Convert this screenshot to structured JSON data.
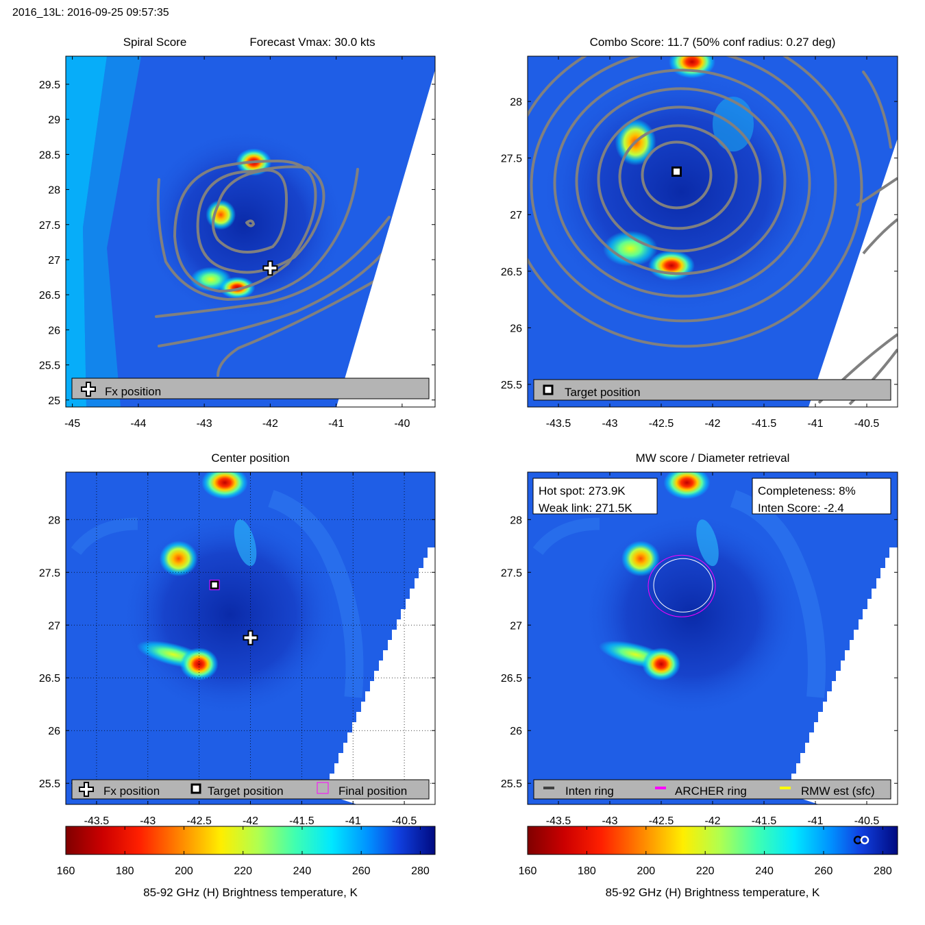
{
  "title": "2016_13L: 2016-09-25 09:57:35",
  "chart_data": [
    {
      "type": "heatmap",
      "panel": "Spiral Score",
      "title_left": "Spiral Score",
      "title_right": "Forecast Vmax: 30.0 kts",
      "xlim": [
        -45.1,
        -39.5
      ],
      "ylim": [
        24.9,
        29.9
      ],
      "xticks": [
        "-45",
        "-44",
        "-43",
        "-42",
        "-41",
        "-40"
      ],
      "yticks": [
        "25",
        "25.5",
        "26",
        "26.5",
        "27",
        "27.5",
        "28",
        "28.5",
        "29",
        "29.5"
      ],
      "legend": [
        "Fx position"
      ],
      "legend_placement": "bottom",
      "fx_position": {
        "x": -42.0,
        "y": 26.88
      },
      "hot_spots": [
        {
          "x": -42.25,
          "y": 28.39,
          "level": "red"
        },
        {
          "x": -42.75,
          "y": 27.64,
          "level": "orange"
        },
        {
          "x": -42.9,
          "y": 26.72,
          "level": "yellow"
        },
        {
          "x": -42.5,
          "y": 26.6,
          "level": "red"
        }
      ],
      "colors": {
        "background": "#1f5ee6",
        "cold": "#0033a0",
        "warm": "#00cfff",
        "contour": "#808080"
      }
    },
    {
      "type": "heatmap",
      "panel": "Combo Score",
      "title": "Combo Score: 11.7  (50% conf radius: 0.27 deg)",
      "xlim": [
        -43.8,
        -40.2
      ],
      "ylim": [
        25.3,
        28.4
      ],
      "xticks": [
        "-43.5",
        "-43",
        "-42.5",
        "-42",
        "-41.5",
        "-41",
        "-40.5"
      ],
      "yticks": [
        "25.5",
        "26",
        "26.5",
        "27",
        "27.5",
        "28"
      ],
      "legend": [
        "Target position"
      ],
      "legend_placement": "bottom",
      "target_position": {
        "x": -42.35,
        "y": 27.38
      },
      "hot_spots": [
        {
          "x": -42.2,
          "y": 28.35,
          "level": "red"
        },
        {
          "x": -42.75,
          "y": 27.64,
          "level": "orange"
        },
        {
          "x": -42.8,
          "y": 26.7,
          "level": "yellow"
        },
        {
          "x": -42.4,
          "y": 26.55,
          "level": "red"
        }
      ]
    },
    {
      "type": "heatmap",
      "panel": "Center position",
      "title": "Center position",
      "xlim": [
        -43.8,
        -40.2
      ],
      "ylim": [
        25.3,
        28.45
      ],
      "xticks": [
        "-43.5",
        "-43",
        "-42.5",
        "-42",
        "-41.5",
        "-41",
        "-40.5"
      ],
      "yticks": [
        "25.5",
        "26",
        "26.5",
        "27",
        "27.5",
        "28"
      ],
      "grid": true,
      "legend": [
        "Fx position",
        "Target position",
        "Final position"
      ],
      "legend_placement": "bottom",
      "fx_position": {
        "x": -42.0,
        "y": 26.88
      },
      "target_position": {
        "x": -42.35,
        "y": 27.38
      },
      "final_position": {
        "x": -42.35,
        "y": 27.38
      },
      "colorbar": {
        "label": "85-92 GHz (H) Brightness temperature, K",
        "ticks": [
          "160",
          "180",
          "200",
          "220",
          "240",
          "260",
          "280"
        ],
        "range": [
          160,
          285
        ]
      }
    },
    {
      "type": "heatmap",
      "panel": "MW score / Diameter retrieval",
      "title": "MW score / Diameter retrieval",
      "xlim": [
        -43.8,
        -40.2
      ],
      "ylim": [
        25.3,
        28.45
      ],
      "xticks": [
        "-43.5",
        "-43",
        "-42.5",
        "-42",
        "-41.5",
        "-41",
        "-40.5"
      ],
      "yticks": [
        "25.5",
        "26",
        "26.5",
        "27",
        "27.5",
        "28"
      ],
      "info_left": [
        "Hot spot: 273.9K",
        "Weak link: 271.5K"
      ],
      "info_right": [
        "Completeness: 8%",
        "Inten Score: -2.4"
      ],
      "legend": [
        "Inten ring",
        "ARCHER ring",
        "RMW est (sfc)"
      ],
      "legend_placement": "bottom",
      "legend_colors": [
        "#404040",
        "#ff00ff",
        "#ffff00"
      ],
      "archer_ring_center": {
        "x": -42.3,
        "y": 27.37
      },
      "colorbar": {
        "label": "85-92 GHz (H) Brightness temperature, K",
        "ticks": [
          "160",
          "180",
          "200",
          "220",
          "240",
          "260",
          "280"
        ],
        "range": [
          160,
          285
        ]
      }
    }
  ]
}
